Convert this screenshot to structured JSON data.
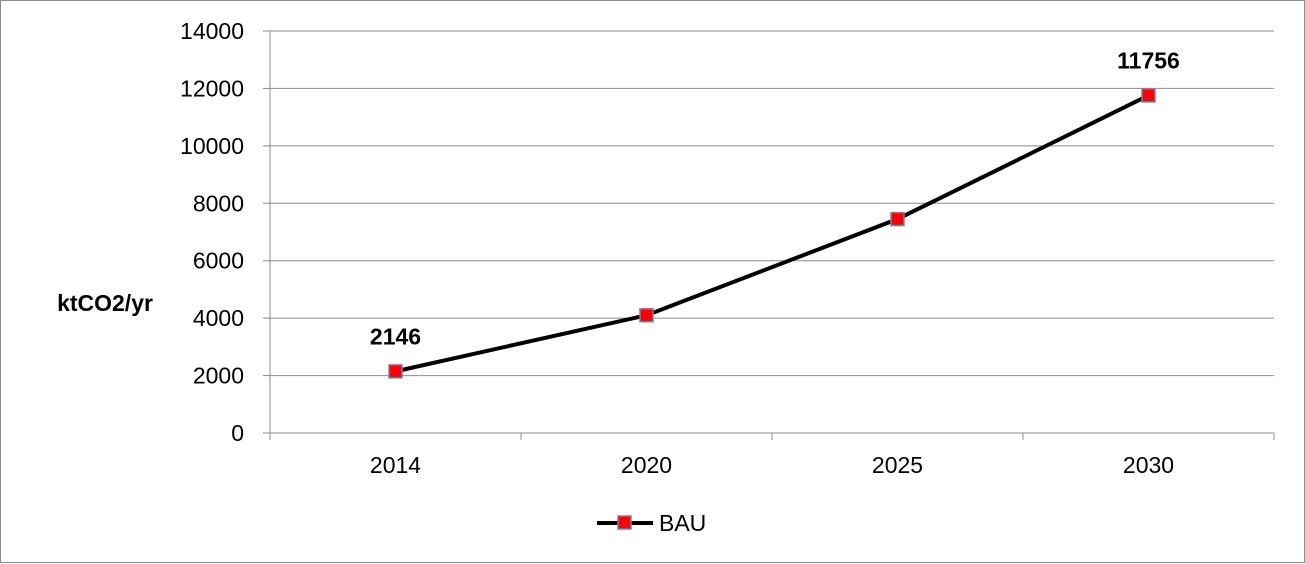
{
  "chart_data": {
    "type": "line",
    "title": "",
    "xlabel": "",
    "ylabel": "ktCO2/yr",
    "categories": [
      "2014",
      "2020",
      "2025",
      "2030"
    ],
    "ylim": [
      0,
      14000
    ],
    "yticks": [
      0,
      2000,
      4000,
      6000,
      8000,
      10000,
      12000,
      14000
    ],
    "grid": true,
    "legend_position": "bottom",
    "series": [
      {
        "name": "BAU",
        "values": [
          2146,
          4100,
          7450,
          11756
        ],
        "line_color": "#000000",
        "marker_color": "#ff0000",
        "marker_edge_color": "#7f7fa0"
      }
    ],
    "data_labels": [
      {
        "category": "2014",
        "text": "2146"
      },
      {
        "category": "2030",
        "text": "11756"
      }
    ]
  }
}
